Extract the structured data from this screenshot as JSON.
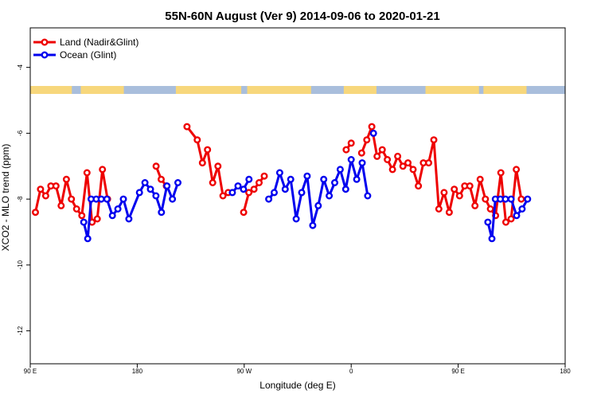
{
  "chart_data": {
    "type": "line",
    "title": "55N-60N August (Ver 9)   2014-09-06 to 2020-01-21",
    "xlabel": "Longitude (deg E)",
    "ylabel": "XCO2 - MLO trend (ppm)",
    "xlim": [
      90,
      450
    ],
    "ylim": [
      -13.0,
      -2.8
    ],
    "x_ticks": [
      {
        "value": 90,
        "label": "90 E"
      },
      {
        "value": 162,
        "label": "180"
      },
      {
        "value": 234,
        "label": "90 W"
      },
      {
        "value": 306,
        "label": "0"
      },
      {
        "value": 378,
        "label": "90 E"
      },
      {
        "value": 450,
        "label": "180"
      }
    ],
    "y_ticks": [
      -12,
      -10,
      -8,
      -6,
      -4
    ],
    "grid": false,
    "legend_position": "top-left",
    "land_mask_colors": {
      "land": "#F7D77C",
      "ocean": "#A9BEDC"
    },
    "series": [
      {
        "name": "Land (Nadir&Glint)",
        "color": "#EE0000",
        "segments": [
          [
            [
              93.5,
              -8.4
            ],
            [
              96.9,
              -7.7
            ],
            [
              100.4,
              -7.9
            ],
            [
              103.9,
              -7.6
            ],
            [
              107.3,
              -7.6
            ],
            [
              110.8,
              -8.2
            ],
            [
              114.3,
              -7.4
            ],
            [
              117.7,
              -8.0
            ],
            [
              121.2,
              -8.3
            ],
            [
              124.7,
              -8.5
            ],
            [
              128.2,
              -7.2
            ],
            [
              131.6,
              -8.7
            ],
            [
              135.1,
              -8.6
            ],
            [
              138.6,
              -7.1
            ],
            [
              142.0,
              -8.0
            ]
          ],
          [
            [
              174.7,
              -7.0
            ],
            [
              178.1,
              -7.4
            ],
            [
              181.6,
              -7.6
            ]
          ],
          [
            [
              195.5,
              -5.8
            ],
            [
              202.4,
              -6.2
            ],
            [
              205.9,
              -6.9
            ],
            [
              209.3,
              -6.5
            ],
            [
              212.8,
              -7.5
            ],
            [
              216.3,
              -7.0
            ],
            [
              219.7,
              -7.9
            ],
            [
              223.2,
              -7.8
            ]
          ],
          [
            [
              233.6,
              -8.4
            ],
            [
              237.1,
              -7.8
            ],
            [
              240.6,
              -7.7
            ],
            [
              244.0,
              -7.5
            ],
            [
              247.5,
              -7.3
            ]
          ],
          [
            [
              302.6,
              -6.5
            ],
            [
              306.0,
              -6.3
            ]
          ],
          [
            [
              313.0,
              -6.6
            ],
            [
              316.5,
              -6.2
            ],
            [
              319.9,
              -5.8
            ],
            [
              323.4,
              -6.7
            ],
            [
              326.9,
              -6.5
            ],
            [
              330.3,
              -6.8
            ],
            [
              333.8,
              -7.1
            ],
            [
              337.3,
              -6.7
            ],
            [
              340.8,
              -7.0
            ],
            [
              344.2,
              -6.9
            ],
            [
              347.7,
              -7.1
            ],
            [
              351.2,
              -7.6
            ],
            [
              354.6,
              -6.9
            ],
            [
              358.1,
              -6.9
            ],
            [
              361.6,
              -6.2
            ],
            [
              365.0,
              -8.3
            ],
            [
              368.5,
              -7.8
            ],
            [
              372.0,
              -8.4
            ],
            [
              375.4,
              -7.7
            ],
            [
              378.9,
              -7.9
            ],
            [
              382.4,
              -7.6
            ],
            [
              385.8,
              -7.6
            ],
            [
              389.3,
              -8.2
            ],
            [
              392.8,
              -7.4
            ],
            [
              396.3,
              -8.0
            ],
            [
              399.7,
              -8.3
            ],
            [
              403.2,
              -8.5
            ],
            [
              406.7,
              -7.2
            ],
            [
              410.1,
              -8.7
            ],
            [
              413.6,
              -8.6
            ],
            [
              417.1,
              -7.1
            ],
            [
              420.5,
              -8.0
            ]
          ]
        ]
      },
      {
        "name": "Ocean (Glint)",
        "color": "#0000EE",
        "segments": [
          [
            [
              126.0,
              -8.7
            ],
            [
              128.7,
              -9.2
            ],
            [
              131.0,
              -8.0
            ],
            [
              134.4,
              -8.0
            ],
            [
              137.8,
              -8.0
            ],
            [
              141.6,
              -8.0
            ],
            [
              145.3,
              -8.5
            ],
            [
              149.0,
              -8.3
            ],
            [
              152.7,
              -8.0
            ],
            [
              156.4,
              -8.6
            ],
            [
              163.5,
              -7.8
            ],
            [
              167.2,
              -7.5
            ],
            [
              170.9,
              -7.7
            ],
            [
              174.6,
              -7.9
            ],
            [
              178.3,
              -8.4
            ],
            [
              182.0,
              -7.6
            ],
            [
              185.7,
              -8.0
            ],
            [
              189.4,
              -7.5
            ]
          ],
          [
            [
              226.0,
              -7.8
            ],
            [
              229.8,
              -7.6
            ],
            [
              233.5,
              -7.7
            ],
            [
              237.2,
              -7.4
            ]
          ],
          [
            [
              250.5,
              -8.0
            ],
            [
              254.2,
              -7.8
            ],
            [
              257.9,
              -7.2
            ],
            [
              261.6,
              -7.7
            ],
            [
              265.3,
              -7.4
            ],
            [
              269.0,
              -8.6
            ],
            [
              272.7,
              -7.8
            ],
            [
              276.4,
              -7.3
            ],
            [
              280.1,
              -8.8
            ],
            [
              283.8,
              -8.2
            ],
            [
              287.5,
              -7.4
            ],
            [
              291.2,
              -7.9
            ],
            [
              294.9,
              -7.5
            ],
            [
              298.6,
              -7.1
            ],
            [
              302.3,
              -7.7
            ],
            [
              306.0,
              -6.8
            ],
            [
              309.7,
              -7.4
            ],
            [
              313.4,
              -6.9
            ],
            [
              317.1,
              -7.9
            ]
          ],
          [
            [
              321.0,
              -6.0
            ]
          ],
          [
            [
              398.0,
              -8.7
            ],
            [
              400.7,
              -9.2
            ],
            [
              403.0,
              -8.0
            ],
            [
              406.4,
              -8.0
            ],
            [
              409.8,
              -8.0
            ],
            [
              413.6,
              -8.0
            ],
            [
              417.3,
              -8.5
            ],
            [
              421.0,
              -8.3
            ],
            [
              424.7,
              -8.0
            ]
          ]
        ]
      }
    ]
  }
}
